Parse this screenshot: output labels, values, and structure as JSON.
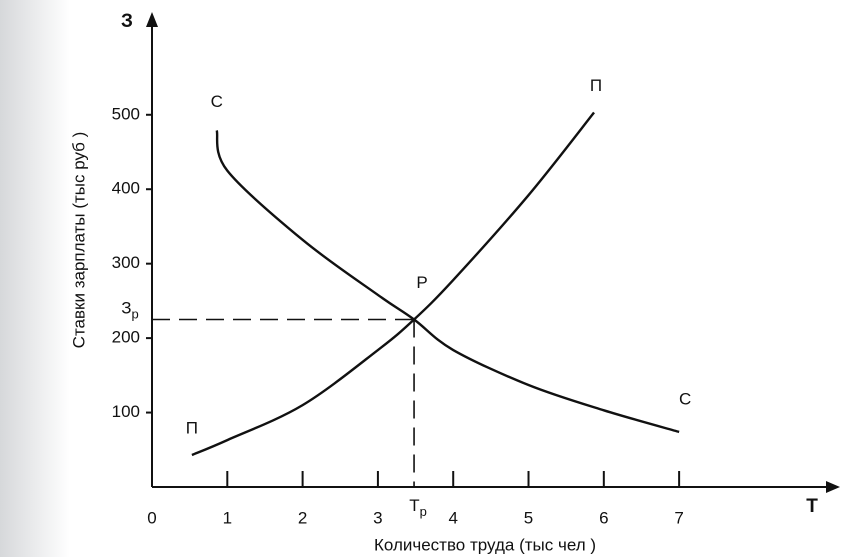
{
  "chart_data": {
    "type": "line",
    "x_axis_letter": "Т",
    "y_axis_letter": "З",
    "xlabel": "Количество труда (тыс чел )",
    "ylabel": "Ставки зарплаты (тыс руб )",
    "xlim": [
      0,
      9.07
    ],
    "ylim": [
      0,
      630
    ],
    "xticks": [
      0,
      1,
      2,
      3,
      4,
      5,
      6,
      7
    ],
    "yticks": [
      100,
      200,
      300,
      400,
      500
    ],
    "color": "#111111",
    "series": [
      {
        "name": "С",
        "x": [
          0.86,
          1,
          2,
          3,
          3.48,
          4,
          5,
          6,
          7
        ],
        "values": [
          479,
          425,
          332,
          258,
          225,
          184,
          137,
          103,
          74
        ]
      },
      {
        "name": "П",
        "x": [
          0.53,
          1,
          2,
          3,
          3.48,
          4,
          5,
          5.87
        ],
        "values": [
          43,
          63,
          110,
          184,
          225,
          278,
          392,
          503
        ]
      }
    ],
    "equilibrium": {
      "label": "Р",
      "x": 3.48,
      "y": 225,
      "x_label": {
        "letter": "Т",
        "sub": "р"
      },
      "y_label": {
        "letter": "З",
        "sub": "р"
      }
    }
  }
}
